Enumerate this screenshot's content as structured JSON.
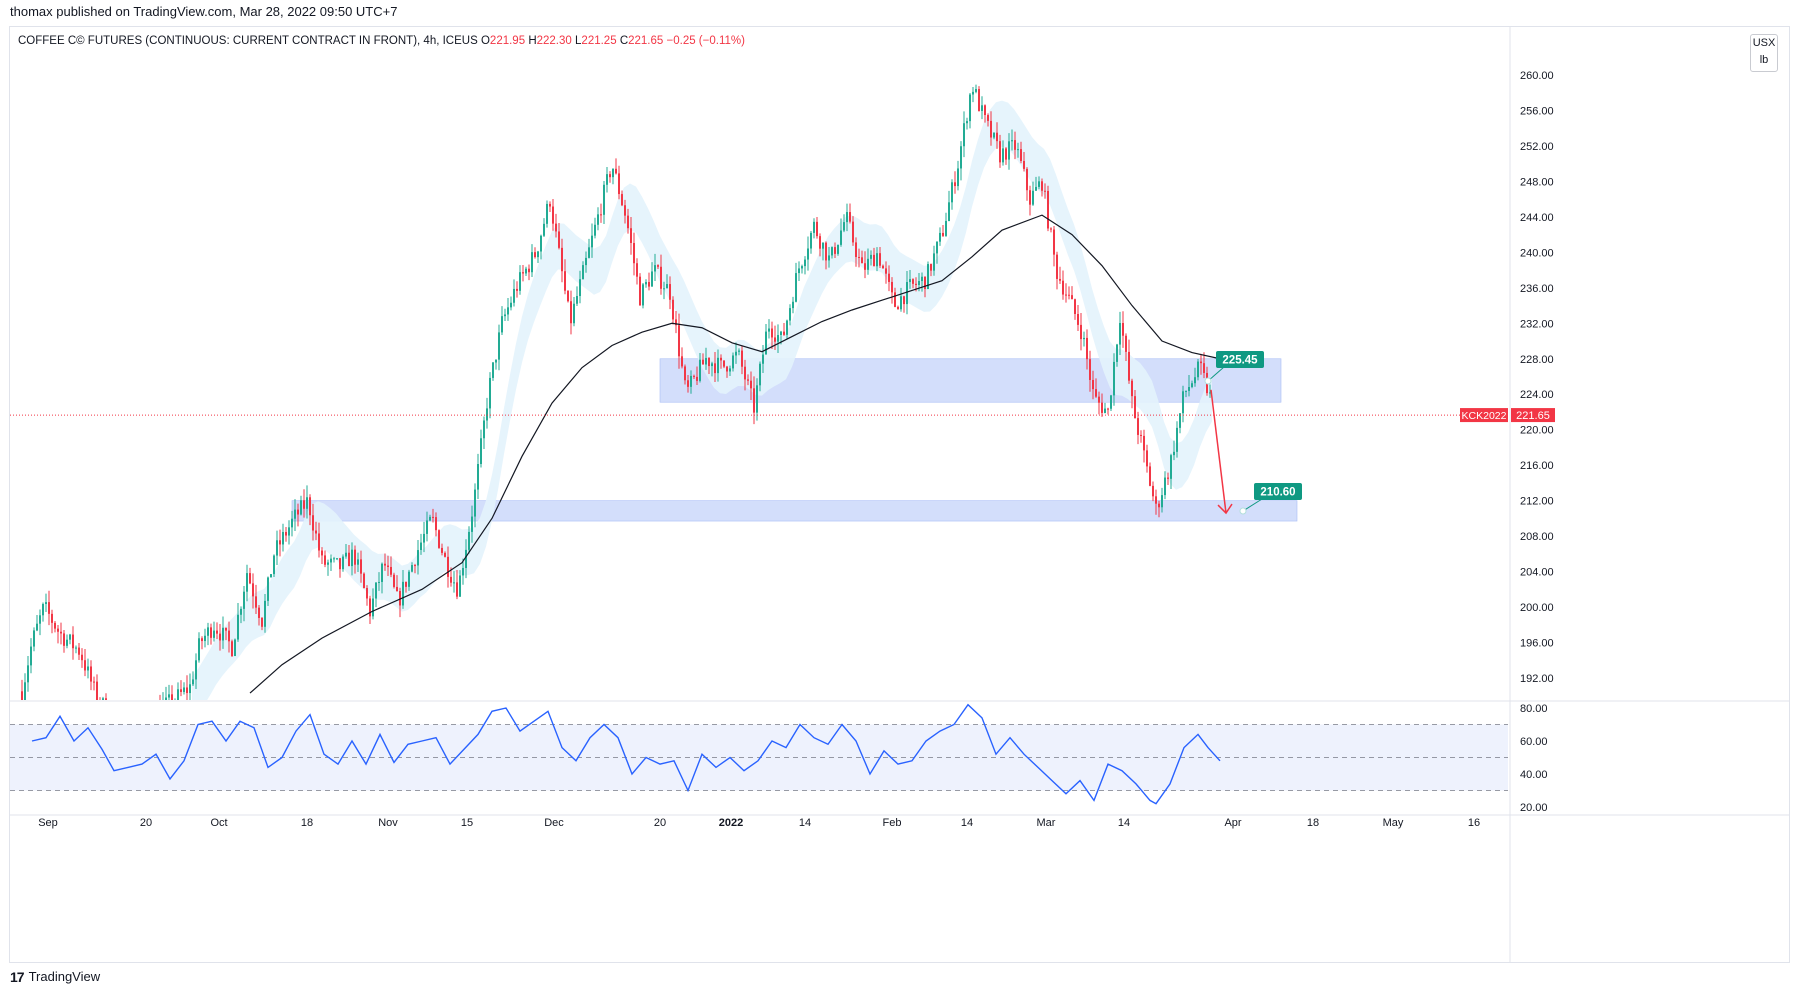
{
  "header": {
    "published_text": "thomax published on TradingView.com, Mar 28, 2022 09:50 UTC+7"
  },
  "legend": {
    "symbol_text": "COFFEE C© FUTURES (CONTINUOUS: CURRENT CONTRACT IN FRONT), 4h, ICEUS",
    "open_label": "O",
    "open_value": "221.95",
    "high_label": "H",
    "high_value": "222.30",
    "low_label": "L",
    "low_value": "221.25",
    "close_label": "C",
    "close_value": "221.65",
    "change_text": "−0.25 (−0.11%)"
  },
  "unit_box": {
    "currency": "USX",
    "unit": "lb"
  },
  "footer": {
    "logo": "17",
    "brand": "TradingView"
  },
  "colors": {
    "up": "#22ab94",
    "down": "#f23645",
    "zone": "#d1dcfb",
    "ribbon": "#e3f3fc",
    "ma": "#131722",
    "rsi": "#2962ff",
    "rsi_band": "#eef2fd",
    "label_bg": "#0f9982",
    "arrow": "#f23645"
  },
  "chart_data": {
    "type": "candlestick",
    "title": "COFFEE C© FUTURES (CONTINUOUS: CURRENT CONTRACT IN FRONT), 4h, ICEUS",
    "timeframe": "4h",
    "ylim": [
      190,
      263
    ],
    "y_ticks": [
      "260.00",
      "256.00",
      "252.00",
      "248.00",
      "244.00",
      "240.00",
      "236.00",
      "232.00",
      "228.00",
      "224.00",
      "220.00",
      "216.00",
      "212.00",
      "208.00",
      "204.00",
      "200.00",
      "196.00",
      "192.00"
    ],
    "x_ticks": [
      "Sep",
      "20",
      "Oct",
      "18",
      "Nov",
      "15",
      "Dec",
      "20",
      "2022",
      "14",
      "Feb",
      "14",
      "Mar",
      "14",
      "Apr",
      "18",
      "May",
      "16"
    ],
    "current_price": {
      "symbol": "KCK2022",
      "value": "221.65"
    },
    "zones": [
      {
        "name": "resistance zone",
        "low": 223.1,
        "high": 228.0,
        "label": "225.45"
      },
      {
        "name": "support zone",
        "low": 209.7,
        "high": 212.0,
        "label": "210.60"
      }
    ],
    "projection": {
      "from": 224.5,
      "to": 210.6
    },
    "price_path": [
      [
        0,
        190.5
      ],
      [
        10,
        196
      ],
      [
        22,
        200
      ],
      [
        38,
        197
      ],
      [
        58,
        195
      ],
      [
        74,
        190
      ],
      [
        96,
        186.5
      ],
      [
        130,
        188
      ],
      [
        152,
        189.5
      ],
      [
        168,
        191
      ],
      [
        178,
        196
      ],
      [
        192,
        198
      ],
      [
        210,
        195.5
      ],
      [
        225,
        204
      ],
      [
        240,
        198.5
      ],
      [
        252,
        206
      ],
      [
        272,
        210
      ],
      [
        286,
        212
      ],
      [
        300,
        205
      ],
      [
        318,
        204.5
      ],
      [
        332,
        206
      ],
      [
        348,
        199.5
      ],
      [
        362,
        205
      ],
      [
        376,
        200.5
      ],
      [
        394,
        206
      ],
      [
        410,
        210
      ],
      [
        424,
        205
      ],
      [
        436,
        202
      ],
      [
        452,
        212
      ],
      [
        466,
        224
      ],
      [
        480,
        232
      ],
      [
        494,
        236
      ],
      [
        514,
        240
      ],
      [
        528,
        246
      ],
      [
        548,
        232
      ],
      [
        562,
        238
      ],
      [
        576,
        244
      ],
      [
        590,
        250
      ],
      [
        604,
        244
      ],
      [
        618,
        235
      ],
      [
        632,
        238
      ],
      [
        648,
        235.5
      ],
      [
        664,
        224
      ],
      [
        684,
        228
      ],
      [
        700,
        227
      ],
      [
        716,
        228.5
      ],
      [
        732,
        222.5
      ],
      [
        746,
        232
      ],
      [
        760,
        230
      ],
      [
        776,
        238
      ],
      [
        792,
        243
      ],
      [
        808,
        239
      ],
      [
        824,
        244
      ],
      [
        840,
        238
      ],
      [
        856,
        240
      ],
      [
        872,
        234
      ],
      [
        888,
        236
      ],
      [
        904,
        237
      ],
      [
        920,
        242
      ],
      [
        936,
        250
      ],
      [
        950,
        259
      ],
      [
        962,
        255
      ],
      [
        978,
        251
      ],
      [
        994,
        252
      ],
      [
        1008,
        246
      ],
      [
        1020,
        248
      ],
      [
        1034,
        238
      ],
      [
        1046,
        235
      ],
      [
        1060,
        231
      ],
      [
        1072,
        223.5
      ],
      [
        1086,
        222
      ],
      [
        1098,
        233
      ],
      [
        1110,
        223
      ],
      [
        1124,
        216
      ],
      [
        1134,
        211
      ],
      [
        1148,
        216
      ],
      [
        1162,
        224
      ],
      [
        1178,
        227
      ],
      [
        1190,
        223
      ],
      [
        1198,
        221.65
      ]
    ],
    "ma_path": [
      [
        228,
        190.3
      ],
      [
        260,
        193.5
      ],
      [
        300,
        196.5
      ],
      [
        350,
        199.5
      ],
      [
        400,
        202
      ],
      [
        440,
        205
      ],
      [
        470,
        210
      ],
      [
        500,
        217
      ],
      [
        530,
        223
      ],
      [
        560,
        227
      ],
      [
        590,
        229.5
      ],
      [
        620,
        231
      ],
      [
        650,
        232
      ],
      [
        680,
        231.5
      ],
      [
        710,
        229.8
      ],
      [
        740,
        228.8
      ],
      [
        770,
        230.5
      ],
      [
        800,
        232.2
      ],
      [
        830,
        233.5
      ],
      [
        860,
        234.6
      ],
      [
        890,
        235.7
      ],
      [
        920,
        236.8
      ],
      [
        950,
        239.5
      ],
      [
        980,
        242.5
      ],
      [
        1020,
        244.2
      ],
      [
        1050,
        242
      ],
      [
        1080,
        238.5
      ],
      [
        1110,
        234
      ],
      [
        1140,
        230
      ],
      [
        1170,
        228.7
      ],
      [
        1198,
        228
      ]
    ],
    "rsi": {
      "ylim": [
        20,
        80
      ],
      "y_ticks": [
        "80.00",
        "60.00",
        "40.00",
        "20.00"
      ],
      "upper": 70,
      "middle": 50,
      "lower": 30,
      "path": [
        [
          10,
          60
        ],
        [
          24,
          62
        ],
        [
          38,
          75
        ],
        [
          52,
          60
        ],
        [
          66,
          68
        ],
        [
          80,
          55
        ],
        [
          92,
          42
        ],
        [
          106,
          44
        ],
        [
          120,
          46
        ],
        [
          134,
          52
        ],
        [
          148,
          37
        ],
        [
          162,
          48
        ],
        [
          176,
          70
        ],
        [
          190,
          72
        ],
        [
          204,
          60
        ],
        [
          218,
          72
        ],
        [
          232,
          68
        ],
        [
          246,
          44
        ],
        [
          260,
          50
        ],
        [
          274,
          66
        ],
        [
          288,
          76
        ],
        [
          302,
          52
        ],
        [
          316,
          46
        ],
        [
          330,
          60
        ],
        [
          344,
          46
        ],
        [
          358,
          64
        ],
        [
          372,
          47
        ],
        [
          386,
          58
        ],
        [
          400,
          60
        ],
        [
          414,
          62
        ],
        [
          428,
          46
        ],
        [
          442,
          55
        ],
        [
          456,
          64
        ],
        [
          470,
          78
        ],
        [
          484,
          80
        ],
        [
          498,
          66
        ],
        [
          512,
          72
        ],
        [
          526,
          78
        ],
        [
          540,
          56
        ],
        [
          554,
          48
        ],
        [
          568,
          62
        ],
        [
          582,
          70
        ],
        [
          596,
          62
        ],
        [
          610,
          40
        ],
        [
          624,
          50
        ],
        [
          638,
          46
        ],
        [
          652,
          48
        ],
        [
          666,
          30
        ],
        [
          680,
          52
        ],
        [
          694,
          44
        ],
        [
          708,
          50
        ],
        [
          722,
          42
        ],
        [
          736,
          48
        ],
        [
          750,
          60
        ],
        [
          764,
          56
        ],
        [
          778,
          70
        ],
        [
          792,
          62
        ],
        [
          806,
          58
        ],
        [
          820,
          70
        ],
        [
          834,
          60
        ],
        [
          848,
          40
        ],
        [
          862,
          54
        ],
        [
          876,
          46
        ],
        [
          890,
          48
        ],
        [
          904,
          60
        ],
        [
          918,
          66
        ],
        [
          932,
          70
        ],
        [
          946,
          82
        ],
        [
          960,
          74
        ],
        [
          974,
          52
        ],
        [
          988,
          62
        ],
        [
          1002,
          52
        ],
        [
          1016,
          44
        ],
        [
          1030,
          36
        ],
        [
          1044,
          28
        ],
        [
          1058,
          36
        ],
        [
          1072,
          24
        ],
        [
          1086,
          46
        ],
        [
          1100,
          42
        ],
        [
          1114,
          34
        ],
        [
          1128,
          24
        ],
        [
          1134,
          22
        ],
        [
          1148,
          34
        ],
        [
          1162,
          56
        ],
        [
          1176,
          64
        ],
        [
          1186,
          56
        ],
        [
          1198,
          48
        ]
      ]
    }
  }
}
